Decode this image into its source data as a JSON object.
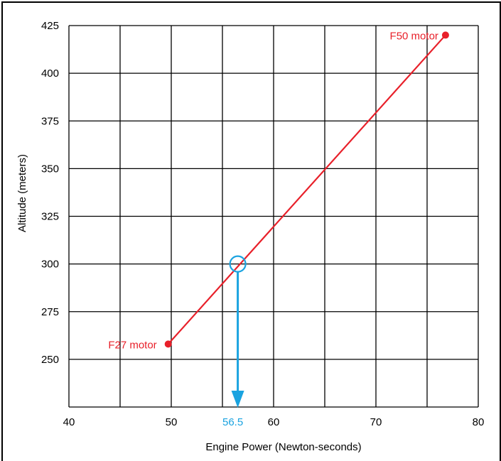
{
  "chart_data": {
    "type": "line",
    "title": "",
    "xlabel": "Engine Power (Newton-seconds)",
    "ylabel": "Altitude (meters)",
    "xlim": [
      40,
      80
    ],
    "ylim": [
      225,
      425
    ],
    "x_grid_step": 5,
    "y_grid_step": 25,
    "x_ticks": [
      40,
      50,
      60,
      70,
      80
    ],
    "y_ticks": [
      250,
      275,
      300,
      325,
      350,
      375,
      400,
      425
    ],
    "grid": true,
    "series": [
      {
        "color": "#e8202a",
        "points": [
          {
            "x": 49.7,
            "y": 258,
            "label": "F27 motor"
          },
          {
            "x": 76.8,
            "y": 420,
            "label": "F50 motor"
          }
        ]
      }
    ],
    "annotation": {
      "color": "#1aa3e0",
      "x": 56.5,
      "y": 300,
      "label": "56.5"
    }
  }
}
